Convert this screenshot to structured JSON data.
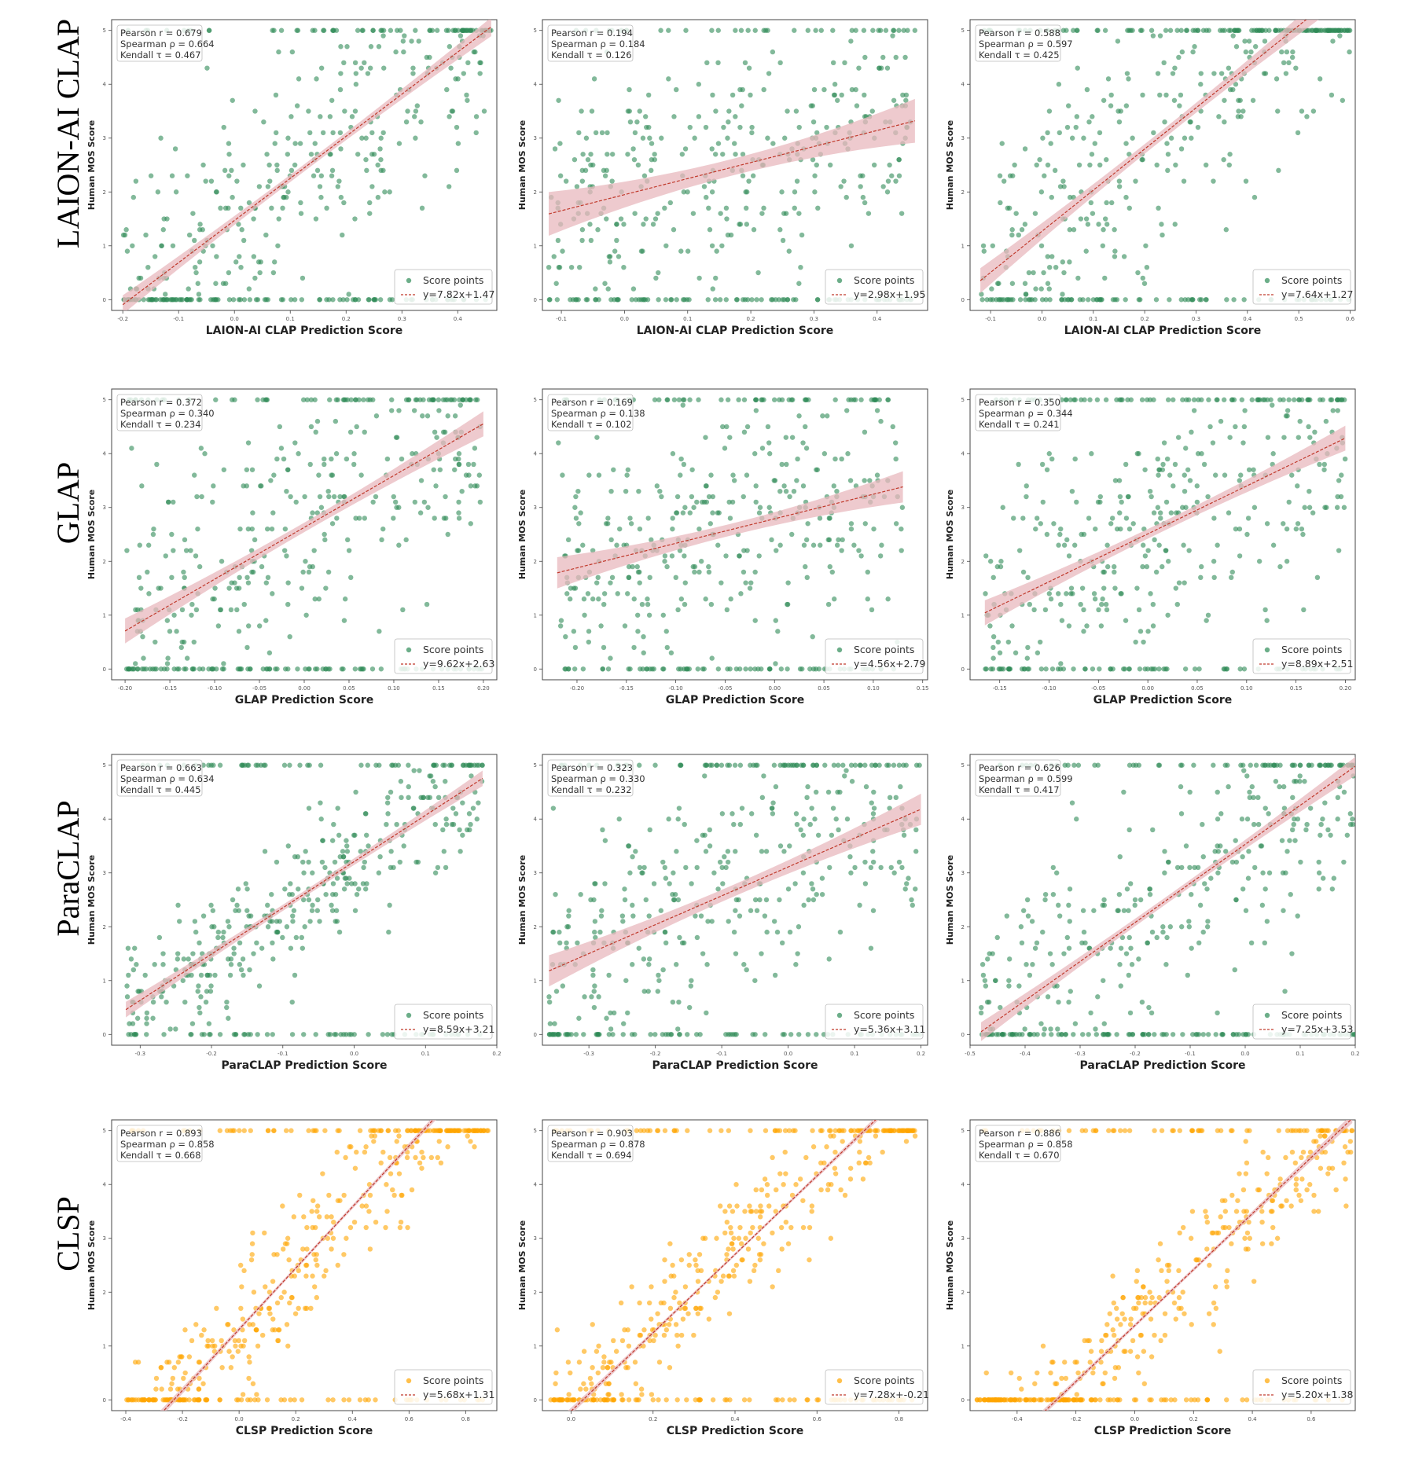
{
  "figure": {
    "row_labels": [
      "LAION-AI CLAP",
      "GLAP",
      "ParaCLAP",
      "CLSP"
    ],
    "colors": {
      "green": "#2e8b57",
      "orange": "#ffa500",
      "fit_line": "#c0392b",
      "band": "#e8b8bd"
    },
    "point_label": "Score points",
    "ylabel": "Human MOS Score"
  },
  "chart_data": [
    {
      "type": "scatter",
      "title": "",
      "xlabel": "LAION-AI CLAP Prediction Score",
      "ylabel": "Human MOS Score",
      "color": "green",
      "xlim": [
        -0.22,
        0.47
      ],
      "ylim": [
        -0.2,
        5.2
      ],
      "xticks": [
        "-0.2",
        "-0.1",
        "0.0",
        "0.1",
        "0.2",
        "0.3",
        "0.4"
      ],
      "yticks": [
        "0",
        "1",
        "2",
        "3",
        "4",
        "5"
      ],
      "stats": [
        "Pearson r = 0.679",
        "Spearman ρ = 0.664",
        "Kendall τ = 0.467"
      ],
      "slope": 7.82,
      "intercept": 1.47,
      "fit_label": "y=7.82x+1.47",
      "band": 0.12,
      "series": [
        {
          "name": "Score points",
          "x_range": [
            -0.2,
            0.46
          ]
        }
      ]
    },
    {
      "type": "scatter",
      "title": "",
      "xlabel": "LAION-AI CLAP Prediction Score",
      "ylabel": "Human MOS Score",
      "color": "green",
      "xlim": [
        -0.13,
        0.48
      ],
      "ylim": [
        -0.2,
        5.2
      ],
      "xticks": [
        "-0.1",
        "0.0",
        "0.1",
        "0.2",
        "0.3",
        "0.4"
      ],
      "yticks": [
        "0",
        "1",
        "2",
        "3",
        "4",
        "5"
      ],
      "stats": [
        "Pearson r = 0.194",
        "Spearman ρ = 0.184",
        "Kendall τ = 0.126"
      ],
      "slope": 2.98,
      "intercept": 1.95,
      "fit_label": "y=2.98x+1.95",
      "band": 0.28,
      "series": [
        {
          "name": "Score points",
          "x_range": [
            -0.12,
            0.46
          ]
        }
      ]
    },
    {
      "type": "scatter",
      "title": "",
      "xlabel": "LAION-AI CLAP Prediction Score",
      "ylabel": "Human MOS Score",
      "color": "green",
      "xlim": [
        -0.14,
        0.61
      ],
      "ylim": [
        -0.2,
        5.2
      ],
      "xticks": [
        "-0.1",
        "0.0",
        "0.1",
        "0.2",
        "0.3",
        "0.4",
        "0.5",
        "0.6"
      ],
      "yticks": [
        "0",
        "1",
        "2",
        "3",
        "4",
        "5"
      ],
      "stats": [
        "Pearson r = 0.588",
        "Spearman ρ = 0.597",
        "Kendall τ = 0.425"
      ],
      "slope": 7.64,
      "intercept": 1.27,
      "fit_label": "y=7.64x+1.27",
      "band": 0.16,
      "series": [
        {
          "name": "Score points",
          "x_range": [
            -0.12,
            0.6
          ]
        }
      ]
    },
    {
      "type": "scatter",
      "title": "",
      "xlabel": "GLAP Prediction Score",
      "ylabel": "Human MOS Score",
      "color": "green",
      "xlim": [
        -0.215,
        0.215
      ],
      "ylim": [
        -0.2,
        5.2
      ],
      "xticks": [
        "-0.20",
        "-0.15",
        "-0.10",
        "-0.05",
        "0.00",
        "0.05",
        "0.10",
        "0.15",
        "0.20"
      ],
      "yticks": [
        "0",
        "1",
        "2",
        "3",
        "4",
        "5"
      ],
      "stats": [
        "Pearson r = 0.372",
        "Spearman ρ = 0.340",
        "Kendall τ = 0.234"
      ],
      "slope": 9.62,
      "intercept": 2.63,
      "fit_label": "y=9.62x+2.63",
      "band": 0.16,
      "series": [
        {
          "name": "Score points",
          "x_range": [
            -0.2,
            0.2
          ]
        }
      ]
    },
    {
      "type": "scatter",
      "title": "",
      "xlabel": "GLAP Prediction Score",
      "ylabel": "Human MOS Score",
      "color": "green",
      "xlim": [
        -0.235,
        0.155
      ],
      "ylim": [
        -0.2,
        5.2
      ],
      "xticks": [
        "-0.20",
        "-0.15",
        "-0.10",
        "-0.05",
        "0.00",
        "0.05",
        "0.10",
        "0.15"
      ],
      "yticks": [
        "0",
        "1",
        "2",
        "3",
        "4",
        "5"
      ],
      "stats": [
        "Pearson r = 0.169",
        "Spearman ρ = 0.138",
        "Kendall τ = 0.102"
      ],
      "slope": 4.56,
      "intercept": 2.79,
      "fit_label": "y=4.56x+2.79",
      "band": 0.2,
      "series": [
        {
          "name": "Score points",
          "x_range": [
            -0.22,
            0.13
          ]
        }
      ]
    },
    {
      "type": "scatter",
      "title": "",
      "xlabel": "GLAP Prediction Score",
      "ylabel": "Human MOS Score",
      "color": "green",
      "xlim": [
        -0.18,
        0.21
      ],
      "ylim": [
        -0.2,
        5.2
      ],
      "xticks": [
        "-0.15",
        "-0.10",
        "-0.05",
        "0.00",
        "0.05",
        "0.10",
        "0.15",
        "0.20"
      ],
      "yticks": [
        "0",
        "1",
        "2",
        "3",
        "4",
        "5"
      ],
      "stats": [
        "Pearson r = 0.350",
        "Spearman ρ = 0.344",
        "Kendall τ = 0.241"
      ],
      "slope": 8.89,
      "intercept": 2.51,
      "fit_label": "y=8.89x+2.51",
      "band": 0.16,
      "series": [
        {
          "name": "Score points",
          "x_range": [
            -0.165,
            0.2
          ]
        }
      ]
    },
    {
      "type": "scatter",
      "title": "",
      "xlabel": "ParaCLAP Prediction Score",
      "ylabel": "Human MOS Score",
      "color": "green",
      "xlim": [
        -0.34,
        0.2
      ],
      "ylim": [
        -0.2,
        5.2
      ],
      "xticks": [
        "-0.3",
        "-0.2",
        "-0.1",
        "0.0",
        "0.1",
        "0.2"
      ],
      "yticks": [
        "0",
        "1",
        "2",
        "3",
        "4",
        "5"
      ],
      "stats": [
        "Pearson r = 0.663",
        "Spearman ρ = 0.634",
        "Kendall τ = 0.445"
      ],
      "slope": 8.59,
      "intercept": 3.21,
      "fit_label": "y=8.59x+3.21",
      "band": 0.1,
      "series": [
        {
          "name": "Score points",
          "x_range": [
            -0.32,
            0.18
          ]
        }
      ]
    },
    {
      "type": "scatter",
      "title": "",
      "xlabel": "ParaCLAP Prediction Score",
      "ylabel": "Human MOS Score",
      "color": "green",
      "xlim": [
        -0.37,
        0.21
      ],
      "ylim": [
        -0.2,
        5.2
      ],
      "xticks": [
        "-0.3",
        "-0.2",
        "-0.1",
        "0.0",
        "0.1",
        "0.2"
      ],
      "yticks": [
        "0",
        "1",
        "2",
        "3",
        "4",
        "5"
      ],
      "stats": [
        "Pearson r = 0.323",
        "Spearman ρ = 0.330",
        "Kendall τ = 0.232"
      ],
      "slope": 5.36,
      "intercept": 3.11,
      "fit_label": "y=5.36x+3.11",
      "band": 0.2,
      "series": [
        {
          "name": "Score points",
          "x_range": [
            -0.36,
            0.2
          ]
        }
      ]
    },
    {
      "type": "scatter",
      "title": "",
      "xlabel": "ParaCLAP Prediction Score",
      "ylabel": "Human MOS Score",
      "color": "green",
      "xlim": [
        -0.5,
        0.2
      ],
      "ylim": [
        -0.2,
        5.2
      ],
      "xticks": [
        "-0.5",
        "-0.4",
        "-0.3",
        "-0.2",
        "-0.1",
        "0.0",
        "0.1",
        "0.2"
      ],
      "yticks": [
        "0",
        "1",
        "2",
        "3",
        "4",
        "5"
      ],
      "stats": [
        "Pearson r = 0.626",
        "Spearman ρ = 0.599",
        "Kendall τ = 0.417"
      ],
      "slope": 7.25,
      "intercept": 3.53,
      "fit_label": "y=7.25x+3.53",
      "band": 0.12,
      "series": [
        {
          "name": "Score points",
          "x_range": [
            -0.48,
            0.2
          ]
        }
      ]
    },
    {
      "type": "scatter",
      "title": "",
      "xlabel": "CLSP Prediction Score",
      "ylabel": "Human MOS Score",
      "color": "orange",
      "xlim": [
        -0.45,
        0.91
      ],
      "ylim": [
        -0.2,
        5.2
      ],
      "xticks": [
        "-0.4",
        "-0.2",
        "0.0",
        "0.2",
        "0.4",
        "0.6",
        "0.8"
      ],
      "yticks": [
        "0",
        "1",
        "2",
        "3",
        "4",
        "5"
      ],
      "stats": [
        "Pearson r = 0.893",
        "Spearman ρ = 0.858",
        "Kendall τ = 0.668"
      ],
      "slope": 5.68,
      "intercept": 1.31,
      "fit_label": "y=5.68x+1.31",
      "band": 0.06,
      "series": [
        {
          "name": "Score points",
          "x_range": [
            -0.4,
            0.88
          ]
        }
      ]
    },
    {
      "type": "scatter",
      "title": "",
      "xlabel": "CLSP Prediction Score",
      "ylabel": "Human MOS Score",
      "color": "orange",
      "xlim": [
        -0.07,
        0.87
      ],
      "ylim": [
        -0.2,
        5.2
      ],
      "xticks": [
        "0.0",
        "0.2",
        "0.4",
        "0.6",
        "0.8"
      ],
      "yticks": [
        "0",
        "1",
        "2",
        "3",
        "4",
        "5"
      ],
      "stats": [
        "Pearson r = 0.903",
        "Spearman ρ = 0.878",
        "Kendall τ = 0.694"
      ],
      "slope": 7.28,
      "intercept": -0.21,
      "fit_label": "y=7.28x+-0.21",
      "band": 0.05,
      "series": [
        {
          "name": "Score points",
          "x_range": [
            -0.05,
            0.84
          ]
        }
      ]
    },
    {
      "type": "scatter",
      "title": "",
      "xlabel": "CLSP Prediction Score",
      "ylabel": "Human MOS Score",
      "color": "orange",
      "xlim": [
        -0.56,
        0.75
      ],
      "ylim": [
        -0.2,
        5.2
      ],
      "xticks": [
        "-0.4",
        "-0.2",
        "0.0",
        "0.2",
        "0.4",
        "0.6"
      ],
      "yticks": [
        "0",
        "1",
        "2",
        "3",
        "4",
        "5"
      ],
      "stats": [
        "Pearson r = 0.886",
        "Spearman ρ = 0.858",
        "Kendall τ = 0.670"
      ],
      "slope": 5.2,
      "intercept": 1.38,
      "fit_label": "y=5.20x+1.38",
      "band": 0.06,
      "series": [
        {
          "name": "Score points",
          "x_range": [
            -0.54,
            0.74
          ]
        }
      ]
    }
  ]
}
